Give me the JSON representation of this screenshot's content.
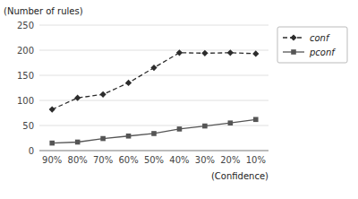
{
  "chart_data": {
    "type": "line",
    "categories": [
      "90%",
      "80%",
      "70%",
      "60%",
      "50%",
      "40%",
      "30%",
      "20%",
      "10%"
    ],
    "series": [
      {
        "name": "conf",
        "color": "#2c2c2c",
        "marker": "diamond",
        "line_style": "dashed",
        "values": [
          82,
          105,
          112,
          135,
          165,
          195,
          194,
          195,
          193
        ]
      },
      {
        "name": "pconf",
        "color": "#555555",
        "marker": "square",
        "line_style": "solid",
        "values": [
          15,
          17,
          24,
          29,
          34,
          43,
          49,
          55,
          62
        ]
      }
    ],
    "ylim": [
      0,
      250
    ],
    "yticks": [
      0,
      50,
      100,
      150,
      200,
      250
    ],
    "y_label": "(Number of rules)",
    "x_label": "(Confidence)",
    "grid": true,
    "legend": "upper right"
  }
}
